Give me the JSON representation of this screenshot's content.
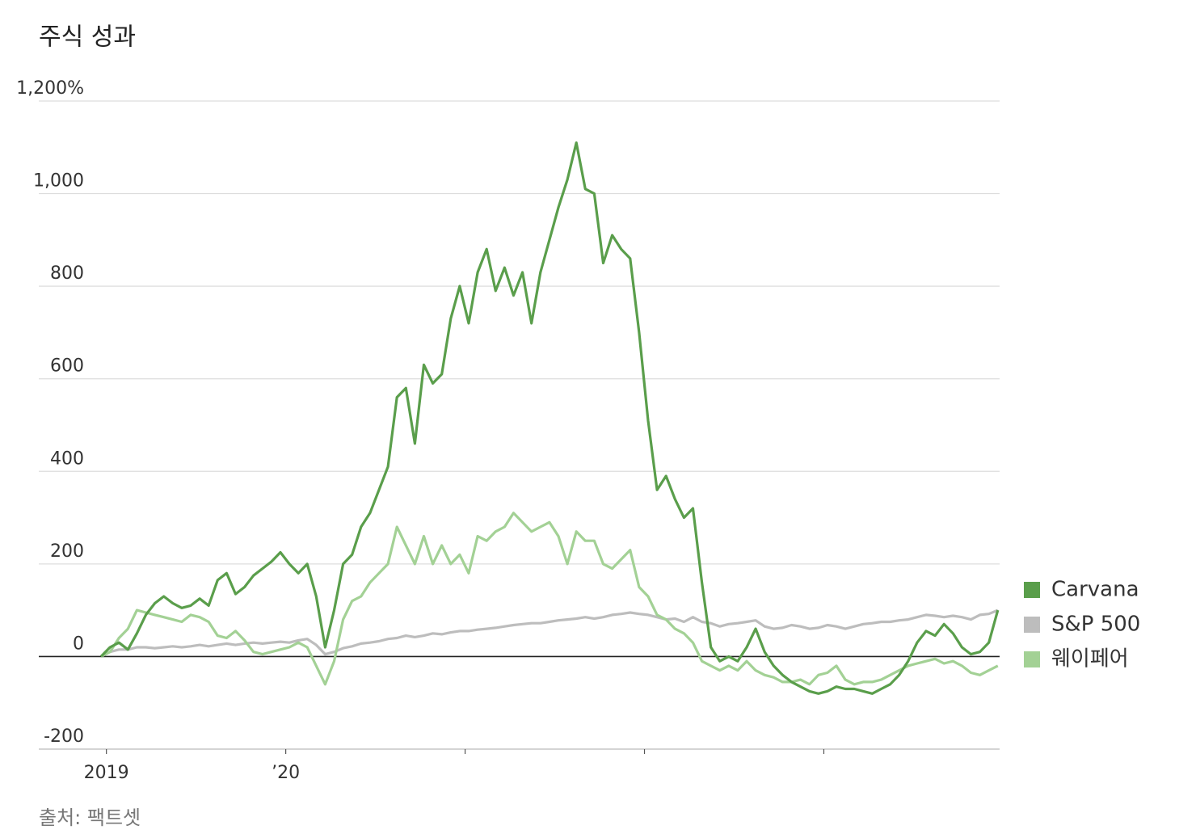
{
  "chart_data": {
    "type": "line",
    "title": "주식 성과",
    "source": "출처: 팩트셋",
    "legend": "right",
    "grid": true,
    "x": [
      2018.97,
      2019.02,
      2019.07,
      2019.12,
      2019.17,
      2019.22,
      2019.27,
      2019.32,
      2019.37,
      2019.42,
      2019.47,
      2019.52,
      2019.57,
      2019.62,
      2019.67,
      2019.72,
      2019.77,
      2019.82,
      2019.87,
      2019.92,
      2019.97,
      2020.02,
      2020.07,
      2020.12,
      2020.17,
      2020.22,
      2020.27,
      2020.32,
      2020.37,
      2020.42,
      2020.47,
      2020.52,
      2020.57,
      2020.62,
      2020.67,
      2020.72,
      2020.77,
      2020.82,
      2020.87,
      2020.92,
      2020.97,
      2021.02,
      2021.07,
      2021.12,
      2021.17,
      2021.22,
      2021.27,
      2021.32,
      2021.37,
      2021.42,
      2021.47,
      2021.52,
      2021.57,
      2021.62,
      2021.67,
      2021.72,
      2021.77,
      2021.82,
      2021.87,
      2021.92,
      2021.97,
      2022.02,
      2022.07,
      2022.12,
      2022.17,
      2022.22,
      2022.27,
      2022.32,
      2022.37,
      2022.42,
      2022.47,
      2022.52,
      2022.57,
      2022.62,
      2022.67,
      2022.72,
      2022.77,
      2022.82,
      2022.87,
      2022.92,
      2022.97,
      2023.02,
      2023.07,
      2023.12,
      2023.17,
      2023.22,
      2023.27,
      2023.32,
      2023.37,
      2023.42,
      2023.47,
      2023.52,
      2023.57,
      2023.62,
      2023.67,
      2023.72,
      2023.77,
      2023.82,
      2023.87,
      2023.92,
      2023.97
    ],
    "series": [
      {
        "name": "Carvana",
        "color": "#5a9e4b",
        "values": [
          0,
          20,
          30,
          15,
          50,
          90,
          115,
          130,
          115,
          105,
          110,
          125,
          110,
          165,
          180,
          135,
          150,
          175,
          190,
          205,
          225,
          200,
          180,
          200,
          130,
          20,
          100,
          200,
          220,
          280,
          310,
          360,
          410,
          560,
          580,
          460,
          630,
          590,
          610,
          730,
          800,
          720,
          830,
          880,
          790,
          840,
          780,
          830,
          720,
          830,
          900,
          970,
          1030,
          1110,
          1010,
          1000,
          850,
          910,
          880,
          860,
          700,
          510,
          360,
          390,
          340,
          300,
          320,
          160,
          20,
          -10,
          0,
          -10,
          20,
          60,
          10,
          -20,
          -40,
          -55,
          -65,
          -75,
          -80,
          -75,
          -65,
          -70,
          -70,
          -75,
          -80,
          -70,
          -60,
          -40,
          -10,
          30,
          55,
          45,
          70,
          50,
          20,
          5,
          10,
          30,
          100
        ]
      },
      {
        "name": "S&P 500",
        "color": "#bdbdbd",
        "values": [
          0,
          10,
          15,
          15,
          20,
          20,
          18,
          20,
          22,
          20,
          22,
          25,
          22,
          25,
          28,
          25,
          28,
          30,
          28,
          30,
          32,
          30,
          35,
          38,
          25,
          5,
          10,
          18,
          22,
          28,
          30,
          33,
          38,
          40,
          45,
          42,
          45,
          50,
          48,
          52,
          55,
          55,
          58,
          60,
          62,
          65,
          68,
          70,
          72,
          72,
          75,
          78,
          80,
          82,
          85,
          82,
          85,
          90,
          92,
          95,
          92,
          90,
          85,
          80,
          82,
          75,
          85,
          75,
          72,
          65,
          70,
          72,
          75,
          78,
          65,
          60,
          62,
          68,
          65,
          60,
          62,
          68,
          65,
          60,
          65,
          70,
          72,
          75,
          75,
          78,
          80,
          85,
          90,
          88,
          85,
          88,
          85,
          80,
          90,
          92,
          100
        ]
      },
      {
        "name": "웨이페어",
        "color": "#a3d195",
        "values": [
          0,
          10,
          40,
          60,
          100,
          95,
          90,
          85,
          80,
          75,
          90,
          85,
          75,
          45,
          40,
          55,
          35,
          10,
          5,
          10,
          15,
          20,
          30,
          20,
          -20,
          -60,
          -10,
          80,
          120,
          130,
          160,
          180,
          200,
          280,
          240,
          200,
          260,
          200,
          240,
          200,
          220,
          180,
          260,
          250,
          270,
          280,
          310,
          290,
          270,
          280,
          290,
          260,
          200,
          270,
          250,
          250,
          200,
          190,
          210,
          230,
          150,
          130,
          90,
          80,
          60,
          50,
          30,
          -10,
          -20,
          -30,
          -20,
          -30,
          -10,
          -30,
          -40,
          -45,
          -55,
          -55,
          -50,
          -60,
          -40,
          -35,
          -20,
          -50,
          -60,
          -55,
          -55,
          -50,
          -40,
          -30,
          -20,
          -15,
          -10,
          -5,
          -15,
          -10,
          -20,
          -35,
          -40,
          -30,
          -20
        ]
      }
    ],
    "xlim": [
      2018.97,
      2023.98
    ],
    "xticks": [
      2019,
      {
        "value": 2020,
        "label": "’20"
      },
      {
        "value": 2021,
        "label": null
      },
      {
        "value": 2022,
        "label": null
      },
      {
        "value": 2023,
        "label": null
      }
    ],
    "ylim": [
      -200,
      1200
    ],
    "yticks": [
      -200,
      0,
      200,
      400,
      600,
      800,
      {
        "value": 1000,
        "label": "1,000"
      },
      {
        "value": 1200,
        "label": "1,200%"
      }
    ]
  }
}
